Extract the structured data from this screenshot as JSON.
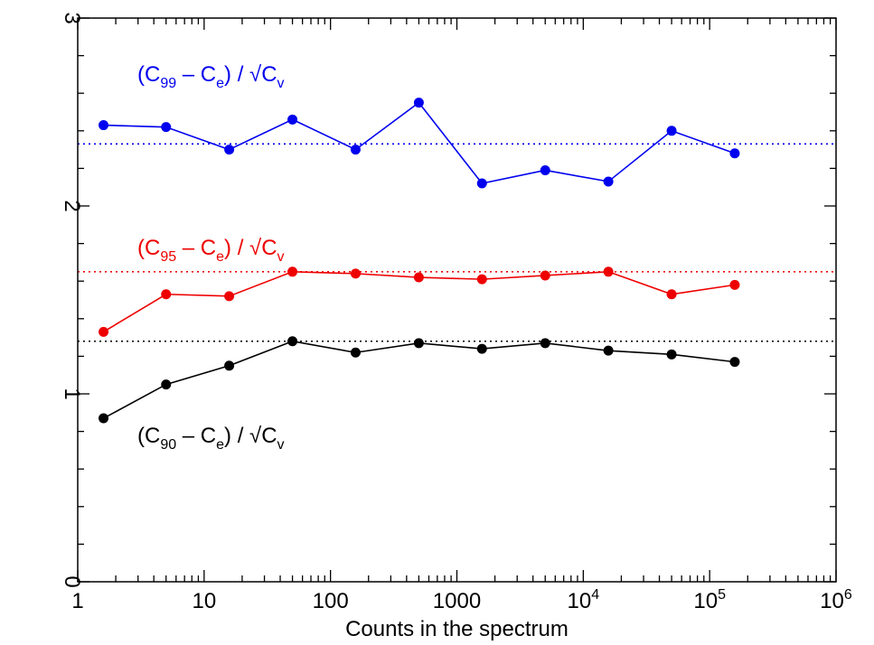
{
  "chart_data": {
    "type": "line",
    "title": "",
    "xlabel": "Counts in the spectrum",
    "ylabel": "",
    "xscale": "log",
    "xlim": [
      1,
      1000000
    ],
    "ylim": [
      0,
      3
    ],
    "grid": false,
    "x_tick_labels": [
      {
        "value": 1,
        "base": "1",
        "exp": ""
      },
      {
        "value": 10,
        "base": "10",
        "exp": ""
      },
      {
        "value": 100,
        "base": "100",
        "exp": ""
      },
      {
        "value": 1000,
        "base": "1000",
        "exp": ""
      },
      {
        "value": 10000,
        "base": "10",
        "exp": "4"
      },
      {
        "value": 100000,
        "base": "10",
        "exp": "5"
      },
      {
        "value": 1000000,
        "base": "10",
        "exp": "6"
      }
    ],
    "y_tick_labels": [
      {
        "value": 0,
        "label": "0"
      },
      {
        "value": 1,
        "label": "1"
      },
      {
        "value": 2,
        "label": "2"
      },
      {
        "value": 3,
        "label": "3"
      }
    ],
    "x": [
      1.6,
      5,
      15.8,
      50,
      158,
      500,
      1580,
      5000,
      15800,
      50000,
      158000
    ],
    "series": [
      {
        "color": "#0000ee",
        "values": [
          2.43,
          2.42,
          2.3,
          2.46,
          2.3,
          2.55,
          2.12,
          2.19,
          2.13,
          2.4,
          2.28
        ],
        "reference": 2.33,
        "label": {
          "pre": "(C",
          "sub1": "99",
          "mid": " – C",
          "sub2": "e",
          "post": ") / √C",
          "sub3": "v"
        }
      },
      {
        "color": "#ee0000",
        "values": [
          1.33,
          1.53,
          1.52,
          1.65,
          1.64,
          1.62,
          1.61,
          1.63,
          1.65,
          1.53,
          1.58
        ],
        "reference": 1.65,
        "label": {
          "pre": "(C",
          "sub1": "95",
          "mid": " – C",
          "sub2": "e",
          "post": ") / √C",
          "sub3": "v"
        }
      },
      {
        "color": "#000000",
        "values": [
          0.87,
          1.05,
          1.15,
          1.28,
          1.22,
          1.27,
          1.24,
          1.27,
          1.23,
          1.21,
          1.17
        ],
        "reference": 1.28,
        "label": {
          "pre": "(C",
          "sub1": "90",
          "mid": " – C",
          "sub2": "e",
          "post": ") / √C",
          "sub3": "v"
        }
      }
    ]
  }
}
